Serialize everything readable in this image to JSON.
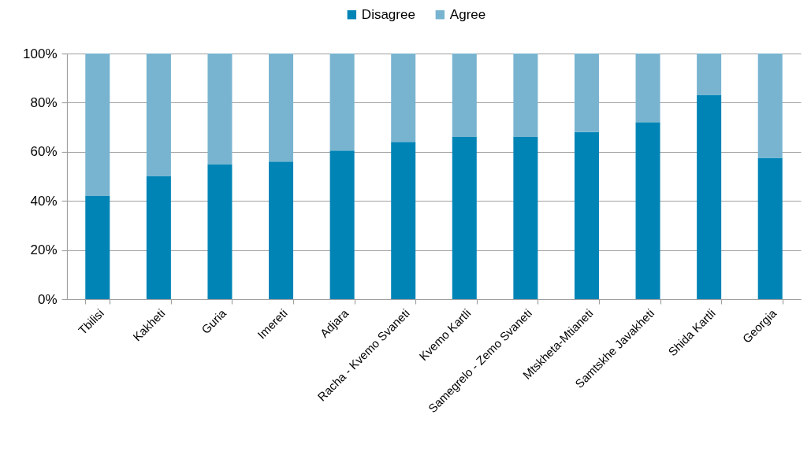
{
  "chart_data": {
    "type": "bar",
    "categories": [
      "Tbilisi",
      "Kakheti",
      "Guria",
      "Imereti",
      "Adjara",
      "Racha - Kvemo Svaneti",
      "Kvemo Kartli",
      "Samegrelo - Zemo Svaneti",
      "Mtskheta-Mtianeti",
      "Samtskhe Javakheti",
      "Shida Kartli",
      "Georgia"
    ],
    "series": [
      {
        "name": "Disagree",
        "color": "#0084b6",
        "values": [
          42,
          50,
          55,
          56,
          60.5,
          64,
          66,
          66,
          68,
          72,
          83,
          57.5
        ]
      },
      {
        "name": "Agree",
        "color": "#78b4d0",
        "values": [
          58,
          50,
          45,
          44,
          39.5,
          36,
          34,
          34,
          32,
          28,
          17,
          42.5
        ]
      }
    ],
    "stacked": true,
    "ylim": [
      0,
      100
    ],
    "yticks": [
      {
        "value": 0,
        "label": "0%"
      },
      {
        "value": 20,
        "label": "20%"
      },
      {
        "value": 40,
        "label": "40%"
      },
      {
        "value": 60,
        "label": "60%"
      },
      {
        "value": 80,
        "label": "80%"
      },
      {
        "value": 100,
        "label": "100%"
      }
    ],
    "grid": "y",
    "legend": "top"
  }
}
